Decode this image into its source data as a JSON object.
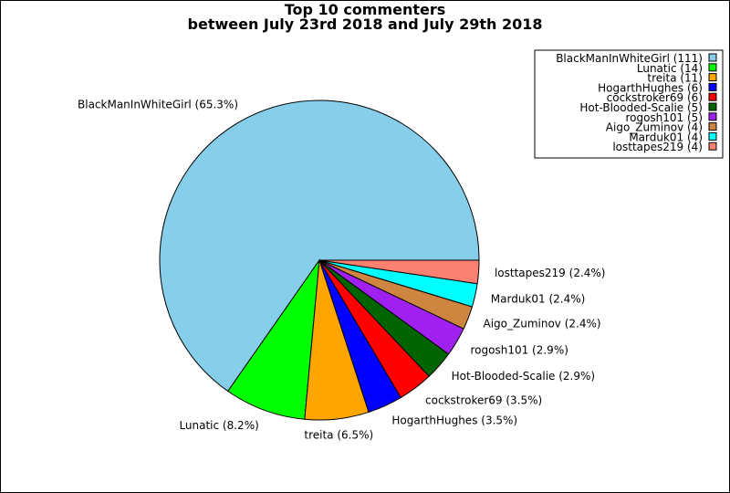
{
  "chart_data": {
    "type": "pie",
    "title": [
      "Top 10 commenters",
      "between July 23rd 2018 and July 29th 2018"
    ],
    "legend_position": "top-right",
    "slices": [
      {
        "name": "BlackManInWhiteGirl",
        "count": 111,
        "percent": 65.3,
        "label": "BlackManInWhiteGirl (65.3%)",
        "legend": "BlackManInWhiteGirl (111)",
        "color": "#87CEEB"
      },
      {
        "name": "Lunatic",
        "count": 14,
        "percent": 8.2,
        "label": "Lunatic (8.2%)",
        "legend": "Lunatic (14)",
        "color": "#00FF00"
      },
      {
        "name": "treita",
        "count": 11,
        "percent": 6.5,
        "label": "treita (6.5%)",
        "legend": "treita (11)",
        "color": "#FFA500"
      },
      {
        "name": "HogarthHughes",
        "count": 6,
        "percent": 3.5,
        "label": "HogarthHughes (3.5%)",
        "legend": "HogarthHughes (6)",
        "color": "#0000FF"
      },
      {
        "name": "cockstroker69",
        "count": 6,
        "percent": 3.5,
        "label": "cockstroker69 (3.5%)",
        "legend": "cockstroker69 (6)",
        "color": "#FF0000"
      },
      {
        "name": "Hot-Blooded-Scalie",
        "count": 5,
        "percent": 2.9,
        "label": "Hot-Blooded-Scalie (2.9%)",
        "legend": "Hot-Blooded-Scalie (5)",
        "color": "#006400"
      },
      {
        "name": "rogosh101",
        "count": 5,
        "percent": 2.9,
        "label": "rogosh101 (2.9%)",
        "legend": "rogosh101 (5)",
        "color": "#A020F0"
      },
      {
        "name": "Aigo_Zuminov",
        "count": 4,
        "percent": 2.4,
        "label": "Aigo_Zuminov (2.4%)",
        "legend": "Aigo_Zuminov (4)",
        "color": "#CD853F"
      },
      {
        "name": "Marduk01",
        "count": 4,
        "percent": 2.4,
        "label": "Marduk01 (2.4%)",
        "legend": "Marduk01 (4)",
        "color": "#00FFFF"
      },
      {
        "name": "losttapes219",
        "count": 4,
        "percent": 2.4,
        "label": "losttapes219 (2.4%)",
        "legend": "losttapes219 (4)",
        "color": "#FA8072"
      }
    ]
  }
}
